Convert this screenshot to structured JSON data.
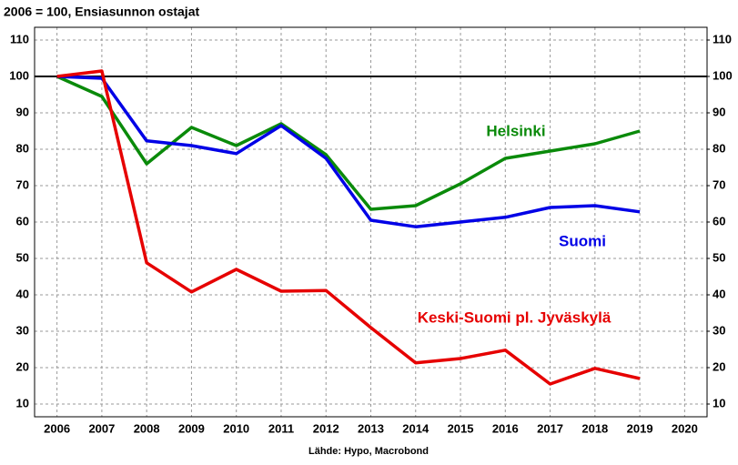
{
  "chart_data": {
    "type": "line",
    "title": "2006 = 100, Ensiasunnon ostajat",
    "source": "Lähde: Hypo, Macrobond",
    "x": [
      2006,
      2007,
      2008,
      2009,
      2010,
      2011,
      2012,
      2013,
      2014,
      2015,
      2016,
      2017,
      2018,
      2019
    ],
    "series": [
      {
        "name": "Helsinki",
        "color": "#0a8a0a",
        "values": [
          100,
          94.5,
          76,
          86,
          81,
          87,
          78.5,
          63.5,
          64.5,
          70.5,
          77.5,
          79.5,
          81.5,
          85
        ]
      },
      {
        "name": "Suomi",
        "color": "#0000e6",
        "values": [
          100,
          99.5,
          82.3,
          81,
          78.8,
          86.5,
          77.5,
          60.5,
          58.7,
          60,
          61.3,
          64,
          64.5,
          62.8
        ]
      },
      {
        "name": "Keski-Suomi pl. Jyväskylä",
        "color": "#e60000",
        "values": [
          100,
          101.5,
          48.8,
          40.8,
          47,
          41,
          41.2,
          31,
          21.3,
          22.5,
          24.8,
          15.5,
          19.8,
          17
        ]
      }
    ],
    "reference_line": 100,
    "xlim": [
      2005.5,
      2020.5
    ],
    "xticks": [
      2006,
      2007,
      2008,
      2009,
      2010,
      2011,
      2012,
      2013,
      2014,
      2015,
      2016,
      2017,
      2018,
      2019,
      2020
    ],
    "ylim": [
      6.5,
      113.5
    ],
    "yticks": [
      10,
      20,
      30,
      40,
      50,
      60,
      70,
      80,
      90,
      100,
      110
    ],
    "y2lim": [
      6.5,
      113.5
    ],
    "y2ticks": [
      10,
      20,
      30,
      40,
      50,
      60,
      70,
      80,
      90,
      100,
      110
    ],
    "grid": true
  }
}
